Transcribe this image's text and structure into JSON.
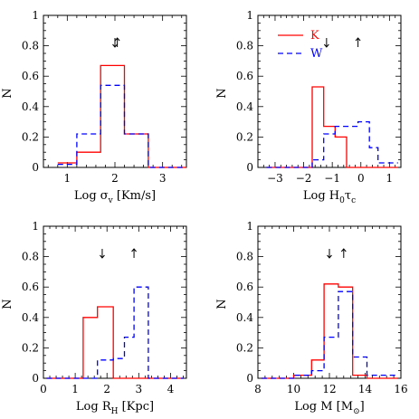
{
  "chart_data": [
    {
      "type": "histogram",
      "panel": "top-left",
      "xlabel_parts": [
        "Log ",
        "σ",
        "v",
        " [Km/s]"
      ],
      "ylabel": "N",
      "xlim": [
        0.5,
        3.5
      ],
      "ylim": [
        0,
        1
      ],
      "xticks": [
        1,
        2,
        3
      ],
      "xtick_labels": [
        "1",
        "2",
        "3"
      ],
      "yticks": [
        0,
        0.2,
        0.4,
        0.6,
        0.8,
        1
      ],
      "ytick_labels": [
        "0",
        "0.2",
        "0.4",
        "0.6",
        "0.8",
        "1"
      ],
      "arrows": [
        {
          "x": 2.0,
          "dir": "down"
        },
        {
          "x": 2.05,
          "dir": "up"
        }
      ],
      "series": [
        {
          "color": "#ff0000",
          "style": "solid",
          "bins": [
            0.8,
            1.2,
            1.7,
            2.2,
            2.7,
            3.5
          ],
          "values": [
            0.03,
            0.1,
            0.67,
            0.22,
            0.0
          ]
        },
        {
          "color": "#0000ff",
          "style": "dashed",
          "bins": [
            0.8,
            1.2,
            1.7,
            2.2,
            2.7,
            3.5
          ],
          "values": [
            0.02,
            0.22,
            0.54,
            0.22,
            0.0
          ]
        }
      ]
    },
    {
      "type": "histogram",
      "panel": "top-right",
      "xlabel_parts": [
        "Log H",
        "0",
        "τ",
        "c"
      ],
      "ylabel": "N",
      "xlim": [
        -3.6,
        1.4
      ],
      "ylim": [
        0,
        1
      ],
      "xticks": [
        -3,
        -2,
        -1,
        0,
        1
      ],
      "xtick_labels": [
        "−3",
        "−2",
        "−1",
        "0",
        "1"
      ],
      "yticks": [
        0,
        0.2,
        0.4,
        0.6,
        0.8,
        1
      ],
      "ytick_labels": [
        "0",
        "0.2",
        "0.4",
        "0.6",
        "0.8",
        "1"
      ],
      "legend": {
        "position": "top-left",
        "entries": [
          "K",
          "W"
        ]
      },
      "arrows": [
        {
          "x": -1.2,
          "dir": "down"
        },
        {
          "x": -0.1,
          "dir": "up"
        }
      ],
      "series": [
        {
          "name": "K",
          "color": "#ff0000",
          "style": "solid",
          "bins": [
            -3.3,
            -1.7,
            -1.3,
            -0.9,
            -0.5,
            1.3
          ],
          "values": [
            0.0,
            0.53,
            0.27,
            0.2,
            0.0
          ]
        },
        {
          "name": "W",
          "color": "#0000ff",
          "style": "dashed",
          "bins": [
            -3.3,
            -1.7,
            -1.3,
            -0.9,
            -0.5,
            -0.1,
            0.3,
            0.6,
            1.3
          ],
          "values": [
            0.0,
            0.05,
            0.22,
            0.27,
            0.27,
            0.3,
            0.13,
            0.03
          ]
        }
      ]
    },
    {
      "type": "histogram",
      "panel": "bottom-left",
      "xlabel_parts": [
        "Log R",
        "H",
        " [Kpc]"
      ],
      "ylabel": "N",
      "xlim": [
        0,
        4.5
      ],
      "ylim": [
        0,
        1
      ],
      "xticks": [
        0,
        1,
        2,
        3,
        4
      ],
      "xtick_labels": [
        "0",
        "1",
        "2",
        "3",
        "4"
      ],
      "yticks": [
        0,
        0.2,
        0.4,
        0.6,
        0.8,
        1
      ],
      "ytick_labels": [
        "0",
        "0.2",
        "0.4",
        "0.6",
        "0.8",
        "1"
      ],
      "arrows": [
        {
          "x": 1.85,
          "dir": "down"
        },
        {
          "x": 2.85,
          "dir": "up"
        }
      ],
      "series": [
        {
          "color": "#ff0000",
          "style": "solid",
          "bins": [
            0.1,
            1.25,
            1.7,
            2.2,
            2.55,
            4.4
          ],
          "values": [
            0.0,
            0.4,
            0.47,
            0.0,
            0.0
          ]
        },
        {
          "color": "#0000ff",
          "style": "dashed",
          "bins": [
            0.1,
            1.7,
            2.2,
            2.55,
            2.85,
            3.3,
            4.4
          ],
          "values": [
            0.0,
            0.12,
            0.13,
            0.27,
            0.6,
            0.0
          ]
        }
      ]
    },
    {
      "type": "histogram",
      "panel": "bottom-right",
      "xlabel_parts": [
        "Log M [M",
        "⊙",
        "]"
      ],
      "ylabel": "N",
      "xlim": [
        8,
        16
      ],
      "ylim": [
        0,
        1
      ],
      "xticks": [
        8,
        10,
        12,
        14,
        16
      ],
      "xtick_labels": [
        "8",
        "10",
        "12",
        "14",
        "16"
      ],
      "yticks": [
        0,
        0.2,
        0.4,
        0.6,
        0.8,
        1
      ],
      "ytick_labels": [
        "0",
        "0.2",
        "0.4",
        "0.6",
        "0.8",
        "1"
      ],
      "arrows": [
        {
          "x": 12.0,
          "dir": "down"
        },
        {
          "x": 12.8,
          "dir": "up"
        }
      ],
      "series": [
        {
          "color": "#ff0000",
          "style": "solid",
          "bins": [
            8.2,
            10.0,
            11.0,
            11.7,
            12.5,
            13.3,
            14.1,
            15.8
          ],
          "values": [
            0.0,
            0.02,
            0.12,
            0.62,
            0.6,
            0.02,
            0.0
          ]
        },
        {
          "color": "#0000ff",
          "style": "dashed",
          "bins": [
            8.2,
            10.0,
            11.0,
            11.7,
            12.5,
            13.3,
            14.1,
            15.8
          ],
          "values": [
            0.0,
            0.02,
            0.05,
            0.27,
            0.57,
            0.14,
            0.02
          ]
        }
      ]
    }
  ]
}
